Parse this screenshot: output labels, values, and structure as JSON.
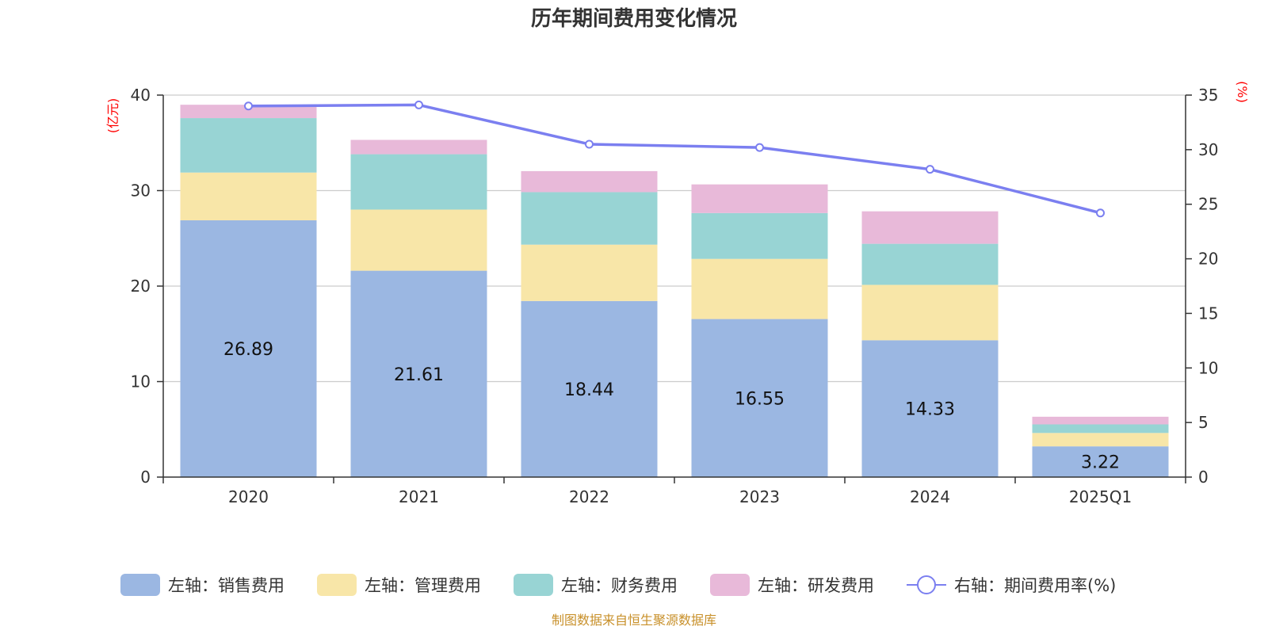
{
  "chart_data": {
    "type": "bar",
    "stacked": true,
    "title": "历年期间费用变化情况",
    "categories": [
      "2020",
      "2021",
      "2022",
      "2023",
      "2024",
      "2025Q1"
    ],
    "series": [
      {
        "name": "左轴：销售费用",
        "axis": "left",
        "color": "#9bb7e2",
        "values": [
          26.89,
          21.61,
          18.44,
          16.55,
          14.33,
          3.22
        ],
        "show_labels": true
      },
      {
        "name": "左轴：管理费用",
        "axis": "left",
        "color": "#f8e6a8",
        "values": [
          5.0,
          6.4,
          5.9,
          6.3,
          5.8,
          1.4
        ],
        "show_labels": false
      },
      {
        "name": "左轴：财务费用",
        "axis": "left",
        "color": "#98d4d4",
        "values": [
          5.7,
          5.8,
          5.5,
          4.8,
          4.3,
          0.9
        ],
        "show_labels": false
      },
      {
        "name": "左轴：研发费用",
        "axis": "left",
        "color": "#e8b9d9",
        "values": [
          1.4,
          1.5,
          2.2,
          3.0,
          3.4,
          0.8
        ],
        "show_labels": false
      }
    ],
    "line_series": {
      "name": "右轴：期间费用率(%)",
      "axis": "right",
      "color": "#7b7ff0",
      "values": [
        34.0,
        34.1,
        30.5,
        30.2,
        28.2,
        24.2
      ]
    },
    "left_axis": {
      "unit": "(亿元)",
      "min": 0,
      "max": 40,
      "ticks": [
        0,
        10,
        20,
        30,
        40
      ]
    },
    "right_axis": {
      "unit": "(%)",
      "min": 0,
      "max": 35,
      "ticks": [
        0,
        5,
        10,
        15,
        20,
        25,
        30,
        35
      ]
    },
    "grid": true,
    "legend_position": "bottom",
    "source": "制图数据来自恒生聚源数据库"
  }
}
